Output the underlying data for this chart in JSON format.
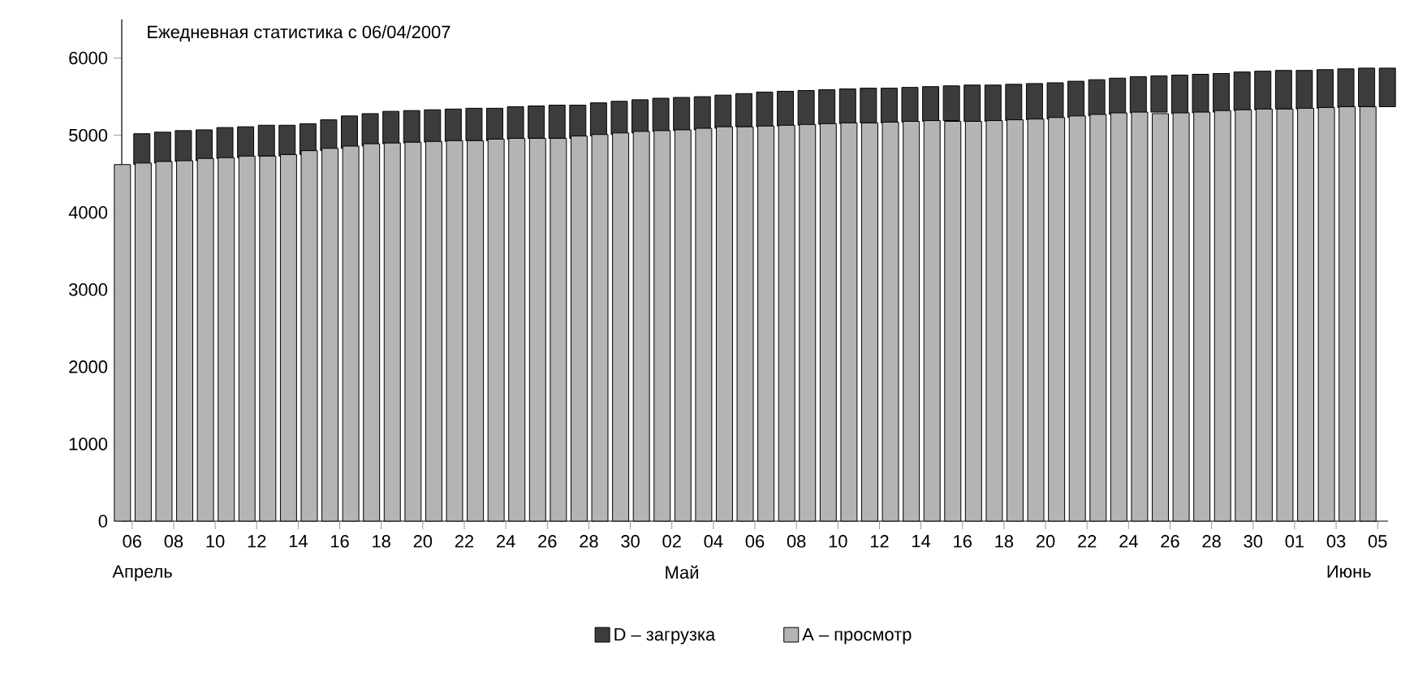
{
  "chart_data": {
    "type": "bar",
    "stacked": true,
    "title": "Ежедневная статистика с 06/04/2007",
    "categories": [
      "06",
      null,
      "08",
      null,
      "10",
      null,
      "12",
      null,
      "14",
      null,
      "16",
      null,
      "18",
      null,
      "20",
      null,
      "22",
      null,
      "24",
      null,
      "26",
      null,
      "28",
      null,
      "30",
      null,
      "02",
      null,
      "04",
      null,
      "06",
      null,
      "08",
      null,
      "10",
      null,
      "12",
      null,
      "14",
      null,
      "16",
      null,
      "18",
      null,
      "20",
      null,
      "22",
      null,
      "24",
      null,
      "26",
      null,
      "28",
      null,
      "30",
      null,
      "01",
      null,
      "03",
      null,
      "05"
    ],
    "series": [
      {
        "name": "A – просмотр",
        "color": "#b4b4b4",
        "values": [
          4620,
          4640,
          4660,
          4670,
          4700,
          4710,
          4730,
          4730,
          4750,
          4800,
          4830,
          4860,
          4890,
          4900,
          4910,
          4920,
          4930,
          4930,
          4950,
          4960,
          4960,
          4960,
          4990,
          5010,
          5030,
          5050,
          5060,
          5070,
          5090,
          5110,
          5110,
          5120,
          5130,
          5140,
          5150,
          5160,
          5160,
          5170,
          5180,
          5190,
          5180,
          5180,
          5190,
          5200,
          5210,
          5230,
          5250,
          5270,
          5290,
          5300,
          5280,
          5290,
          5300,
          5320,
          5330,
          5340,
          5340,
          5350,
          5360,
          5370,
          5370
        ]
      },
      {
        "name": "D – загрузка",
        "color": "#3c3c3c",
        "values": [
          400,
          400,
          400,
          400,
          400,
          400,
          400,
          400,
          400,
          400,
          420,
          420,
          420,
          420,
          420,
          420,
          420,
          420,
          420,
          420,
          430,
          430,
          430,
          430,
          430,
          430,
          430,
          430,
          430,
          430,
          450,
          450,
          450,
          450,
          450,
          450,
          450,
          450,
          450,
          450,
          470,
          470,
          470,
          470,
          470,
          470,
          470,
          470,
          470,
          470,
          500,
          500,
          500,
          500,
          500,
          500,
          500,
          500,
          500,
          500,
          500
        ]
      }
    ],
    "ylim": [
      0,
      6500
    ],
    "yticks": [
      0,
      1000,
      2000,
      3000,
      4000,
      5000,
      6000
    ],
    "grid": false,
    "legend": "bottom",
    "annotations": [
      "Апрель",
      "Май",
      "Июнь"
    ]
  }
}
